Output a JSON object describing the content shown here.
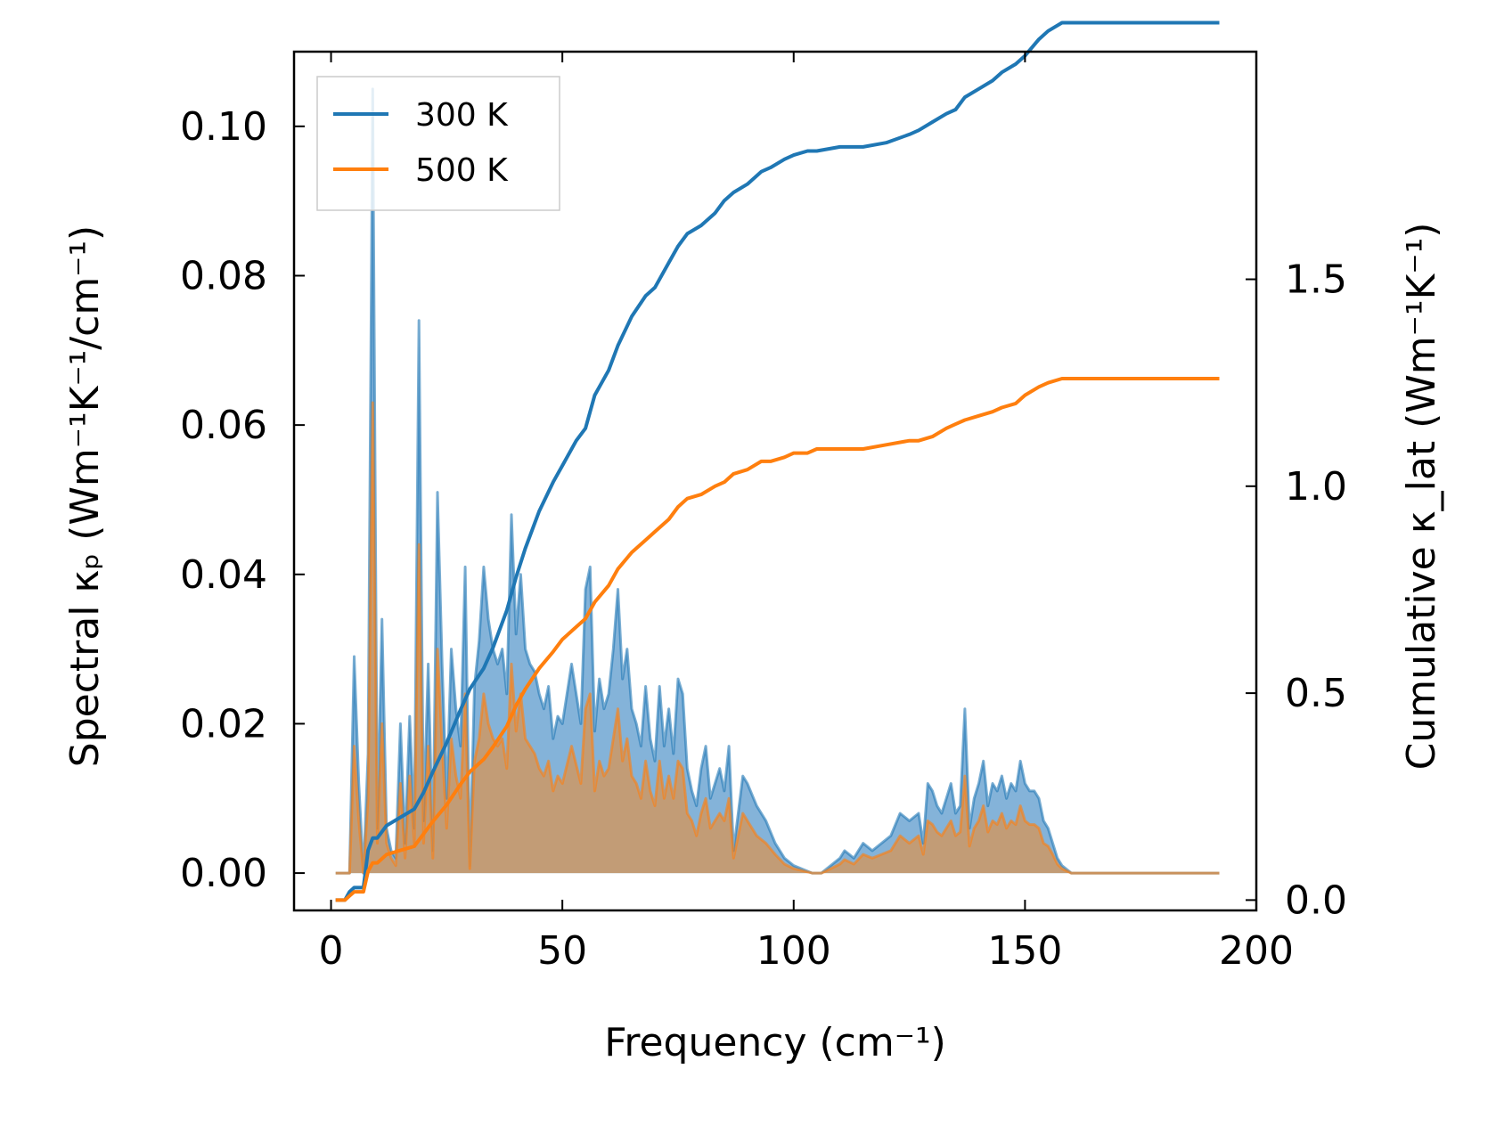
{
  "chart_data": {
    "type": "line",
    "title": "",
    "xlabel": "Frequency (cm⁻¹)",
    "ylabel_left": "Spectral κₚ (Wm⁻¹K⁻¹/cm⁻¹)",
    "ylabel_right": "Cumulative κ_lat (Wm⁻¹K⁻¹)",
    "xlim": [
      -8,
      200
    ],
    "ylim_left": [
      -0.005,
      0.11
    ],
    "ylim_right": [
      -0.025,
      2.05
    ],
    "x_ticks": [
      0,
      50,
      100,
      150,
      200
    ],
    "x_tick_labels": [
      "0",
      "50",
      "100",
      "150",
      "200"
    ],
    "y_left_ticks": [
      0.0,
      0.02,
      0.04,
      0.06,
      0.08,
      0.1
    ],
    "y_left_tick_labels": [
      "0.00",
      "0.02",
      "0.04",
      "0.06",
      "0.08",
      "0.10"
    ],
    "y_right_ticks": [
      0.0,
      0.5,
      1.0,
      1.5
    ],
    "y_right_tick_labels": [
      "0.0",
      "0.5",
      "1.0",
      "1.5"
    ],
    "legend": {
      "position": "top-left",
      "entries": [
        "300 K",
        "500 K"
      ]
    },
    "colors": {
      "300 K": "#1f77b4",
      "500 K": "#ff7f0e",
      "fill_300": "#6fa6d2",
      "fill_500": "#c9996a"
    },
    "spectral_series": [
      {
        "name": "300 K",
        "x": [
          1,
          4,
          5,
          6,
          7,
          8,
          9,
          10,
          11,
          12,
          13,
          14,
          15,
          16,
          17,
          18,
          19,
          20,
          21,
          22,
          23,
          24,
          25,
          26,
          27,
          28,
          29,
          30,
          31,
          32,
          33,
          34,
          35,
          36,
          37,
          38,
          39,
          40,
          41,
          42,
          43,
          44,
          45,
          46,
          47,
          48,
          49,
          50,
          52,
          54,
          55,
          56,
          57,
          58,
          59,
          60,
          61,
          62,
          63,
          64,
          65,
          66,
          67,
          68,
          69,
          70,
          71,
          72,
          73,
          74,
          75,
          76,
          77,
          78,
          79,
          80,
          81,
          82,
          83,
          84,
          85,
          86,
          87,
          88,
          89,
          90,
          92,
          94,
          96,
          98,
          100,
          102,
          104,
          106,
          108,
          110,
          111,
          113,
          115,
          117,
          119,
          121,
          123,
          125,
          127,
          128,
          129,
          130,
          131,
          132,
          133,
          134,
          135,
          136,
          137,
          138,
          139,
          140,
          141,
          142,
          143,
          144,
          145,
          146,
          147,
          148,
          149,
          150,
          151,
          152,
          153,
          154,
          155,
          156,
          157,
          158,
          160,
          165,
          192
        ],
        "y": [
          0,
          0,
          0.029,
          0.012,
          0,
          0.016,
          0.105,
          0.006,
          0.034,
          0.006,
          0.003,
          0.002,
          0.02,
          0.004,
          0.021,
          0.006,
          0.074,
          0.007,
          0.028,
          0.003,
          0.051,
          0.028,
          0.01,
          0.03,
          0.022,
          0.017,
          0.041,
          0.001,
          0.025,
          0.031,
          0.041,
          0.034,
          0.03,
          0.028,
          0.03,
          0.024,
          0.048,
          0.032,
          0.04,
          0.03,
          0.028,
          0.027,
          0.024,
          0.022,
          0.025,
          0.018,
          0.021,
          0.02,
          0.028,
          0.02,
          0.038,
          0.041,
          0.019,
          0.026,
          0.022,
          0.024,
          0.03,
          0.038,
          0.026,
          0.03,
          0.022,
          0.02,
          0.017,
          0.025,
          0.018,
          0.015,
          0.025,
          0.017,
          0.022,
          0.016,
          0.026,
          0.024,
          0.014,
          0.011,
          0.009,
          0.014,
          0.017,
          0.01,
          0.012,
          0.014,
          0.011,
          0.017,
          0.003,
          0.008,
          0.013,
          0.012,
          0.009,
          0.007,
          0.004,
          0.002,
          0.001,
          0.0005,
          0,
          0,
          0.001,
          0.002,
          0.003,
          0.002,
          0.004,
          0.003,
          0.004,
          0.005,
          0.008,
          0.007,
          0.008,
          0.004,
          0.012,
          0.011,
          0.009,
          0.008,
          0.01,
          0.012,
          0.008,
          0.009,
          0.022,
          0.006,
          0.01,
          0.012,
          0.015,
          0.009,
          0.012,
          0.011,
          0.013,
          0.01,
          0.012,
          0.011,
          0.015,
          0.012,
          0.011,
          0.011,
          0.01,
          0.007,
          0.006,
          0.004,
          0.002,
          0.001,
          0,
          0,
          0
        ]
      },
      {
        "name": "500 K",
        "x": [
          1,
          4,
          5,
          6,
          7,
          8,
          9,
          10,
          11,
          12,
          13,
          14,
          15,
          16,
          17,
          18,
          19,
          20,
          21,
          22,
          23,
          24,
          25,
          26,
          27,
          28,
          29,
          30,
          31,
          32,
          33,
          34,
          35,
          36,
          37,
          38,
          39,
          40,
          41,
          42,
          43,
          44,
          45,
          46,
          47,
          48,
          49,
          50,
          52,
          54,
          55,
          56,
          57,
          58,
          59,
          60,
          61,
          62,
          63,
          64,
          65,
          66,
          67,
          68,
          69,
          70,
          71,
          72,
          73,
          74,
          75,
          76,
          77,
          78,
          79,
          80,
          81,
          82,
          83,
          84,
          85,
          86,
          87,
          88,
          89,
          90,
          92,
          94,
          96,
          98,
          100,
          102,
          104,
          106,
          108,
          110,
          111,
          113,
          115,
          117,
          119,
          121,
          123,
          125,
          127,
          128,
          129,
          130,
          131,
          132,
          133,
          134,
          135,
          136,
          137,
          138,
          139,
          140,
          141,
          142,
          143,
          144,
          145,
          146,
          147,
          148,
          149,
          150,
          151,
          152,
          153,
          154,
          155,
          156,
          157,
          158,
          160,
          165,
          192
        ],
        "y": [
          0,
          0,
          0.017,
          0.007,
          0,
          0.01,
          0.063,
          0.004,
          0.02,
          0.004,
          0.002,
          0.001,
          0.012,
          0.002,
          0.013,
          0.004,
          0.044,
          0.004,
          0.017,
          0.002,
          0.03,
          0.017,
          0.006,
          0.018,
          0.013,
          0.01,
          0.024,
          0.0006,
          0.015,
          0.018,
          0.024,
          0.02,
          0.018,
          0.017,
          0.018,
          0.014,
          0.028,
          0.019,
          0.024,
          0.018,
          0.017,
          0.016,
          0.014,
          0.013,
          0.015,
          0.011,
          0.013,
          0.012,
          0.017,
          0.012,
          0.022,
          0.024,
          0.011,
          0.015,
          0.013,
          0.014,
          0.018,
          0.022,
          0.015,
          0.018,
          0.013,
          0.012,
          0.01,
          0.015,
          0.011,
          0.009,
          0.015,
          0.01,
          0.013,
          0.01,
          0.015,
          0.014,
          0.008,
          0.007,
          0.005,
          0.008,
          0.01,
          0.006,
          0.007,
          0.008,
          0.007,
          0.01,
          0.002,
          0.005,
          0.008,
          0.007,
          0.005,
          0.004,
          0.0025,
          0.0012,
          0.0006,
          0.0003,
          0,
          0,
          0.0006,
          0.0012,
          0.0018,
          0.0012,
          0.0025,
          0.002,
          0.0025,
          0.003,
          0.005,
          0.004,
          0.005,
          0.0025,
          0.007,
          0.0065,
          0.0055,
          0.005,
          0.006,
          0.007,
          0.005,
          0.0055,
          0.013,
          0.0036,
          0.006,
          0.007,
          0.009,
          0.0055,
          0.007,
          0.0065,
          0.008,
          0.006,
          0.007,
          0.0065,
          0.009,
          0.007,
          0.0065,
          0.0065,
          0.006,
          0.004,
          0.0036,
          0.0025,
          0.0012,
          0.0006,
          0,
          0,
          0
        ]
      }
    ],
    "cumulative_series": [
      {
        "name": "300 K",
        "x": [
          1,
          3,
          4,
          5,
          7,
          8,
          9,
          10,
          12,
          15,
          18,
          20,
          22,
          25,
          28,
          30,
          33,
          35,
          38,
          40,
          42,
          45,
          48,
          50,
          53,
          55,
          57,
          60,
          62,
          65,
          68,
          70,
          73,
          75,
          77,
          80,
          83,
          85,
          87,
          90,
          93,
          95,
          98,
          100,
          103,
          105,
          110,
          115,
          120,
          125,
          127,
          130,
          133,
          135,
          137,
          140,
          143,
          145,
          148,
          150,
          153,
          155,
          158,
          160,
          192
        ],
        "y": [
          0,
          0,
          0.02,
          0.03,
          0.03,
          0.12,
          0.15,
          0.15,
          0.18,
          0.2,
          0.22,
          0.26,
          0.31,
          0.38,
          0.46,
          0.51,
          0.56,
          0.61,
          0.7,
          0.78,
          0.85,
          0.94,
          1.01,
          1.05,
          1.11,
          1.14,
          1.22,
          1.28,
          1.34,
          1.41,
          1.46,
          1.48,
          1.54,
          1.58,
          1.61,
          1.63,
          1.66,
          1.69,
          1.71,
          1.73,
          1.76,
          1.77,
          1.79,
          1.8,
          1.81,
          1.81,
          1.82,
          1.82,
          1.83,
          1.85,
          1.86,
          1.88,
          1.9,
          1.91,
          1.94,
          1.96,
          1.98,
          2.0,
          2.02,
          2.04,
          2.08,
          2.1,
          2.12,
          2.12,
          2.12
        ]
      },
      {
        "name": "500 K",
        "x": [
          1,
          3,
          4,
          5,
          7,
          8,
          9,
          10,
          12,
          15,
          18,
          20,
          22,
          25,
          28,
          30,
          33,
          35,
          38,
          40,
          42,
          45,
          48,
          50,
          53,
          55,
          57,
          60,
          62,
          65,
          68,
          70,
          73,
          75,
          77,
          80,
          83,
          85,
          87,
          90,
          93,
          95,
          98,
          100,
          103,
          105,
          110,
          115,
          120,
          125,
          127,
          130,
          133,
          135,
          137,
          140,
          143,
          145,
          148,
          150,
          153,
          155,
          158,
          160,
          192
        ],
        "y": [
          0,
          0,
          0.01,
          0.02,
          0.02,
          0.07,
          0.09,
          0.09,
          0.11,
          0.12,
          0.13,
          0.16,
          0.19,
          0.23,
          0.28,
          0.31,
          0.34,
          0.37,
          0.42,
          0.47,
          0.51,
          0.56,
          0.6,
          0.63,
          0.66,
          0.68,
          0.72,
          0.76,
          0.8,
          0.84,
          0.87,
          0.89,
          0.92,
          0.95,
          0.97,
          0.98,
          1.0,
          1.01,
          1.03,
          1.04,
          1.06,
          1.06,
          1.07,
          1.08,
          1.08,
          1.09,
          1.09,
          1.09,
          1.1,
          1.11,
          1.11,
          1.12,
          1.14,
          1.15,
          1.16,
          1.17,
          1.18,
          1.19,
          1.2,
          1.22,
          1.24,
          1.25,
          1.26,
          1.26,
          1.26
        ]
      }
    ]
  }
}
